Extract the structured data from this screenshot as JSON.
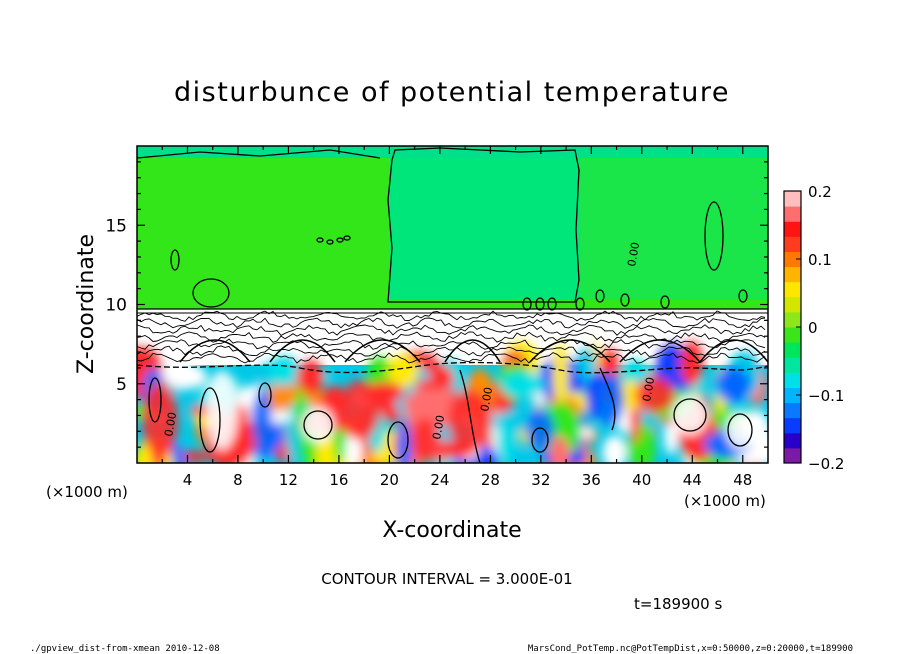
{
  "chart_data": {
    "type": "heatmap",
    "title": "disturbunce of potential temperature",
    "xlabel": "X-coordinate",
    "ylabel": "Z-coordinate",
    "x_unit_label": "(×1000 m)",
    "x_unit_label_left": "(×1000 m)",
    "xlim": [
      0,
      50
    ],
    "ylim": [
      0,
      20
    ],
    "x_ticks": [
      4,
      8,
      12,
      16,
      20,
      24,
      28,
      32,
      36,
      40,
      44,
      48
    ],
    "y_ticks": [
      5,
      10,
      15
    ],
    "colorbar": {
      "min": -0.2,
      "max": 0.2,
      "ticks": [
        0.2,
        0.1,
        0,
        -0.1,
        -0.2
      ],
      "tick_labels": [
        "0.2",
        "0.1",
        "0",
        "−0.1",
        "−0.2"
      ]
    },
    "contour_interval_text": "CONTOUR INTERVAL = 3.000E-01",
    "contour_labels": [
      "0.00",
      "0.00",
      "0.00",
      "0.00",
      "0.00"
    ],
    "time_text": "t=189900 s",
    "regions": {
      "upper": {
        "z_range": [
          10,
          20
        ],
        "value_range": [
          -0.02,
          0.04
        ]
      },
      "lower": {
        "z_range": [
          0,
          10
        ],
        "value_range": [
          -0.2,
          0.2
        ]
      }
    }
  },
  "footer": {
    "left": "./gpview_dist-from-xmean  2010-12-08",
    "right": "MarsCond_PotTemp.nc@PotTempDist,x=0:50000,z=0:20000,t=189900"
  },
  "colors": {
    "upper_green": "#33e61a",
    "upper_light": "#00e67a",
    "white": "#ffffff",
    "red": "#ff2a2a",
    "blue": "#0066ff",
    "cyan": "#00c8e6",
    "yellow": "#ffea00",
    "orange": "#ff8c00",
    "purple": "#7a1aa6"
  }
}
